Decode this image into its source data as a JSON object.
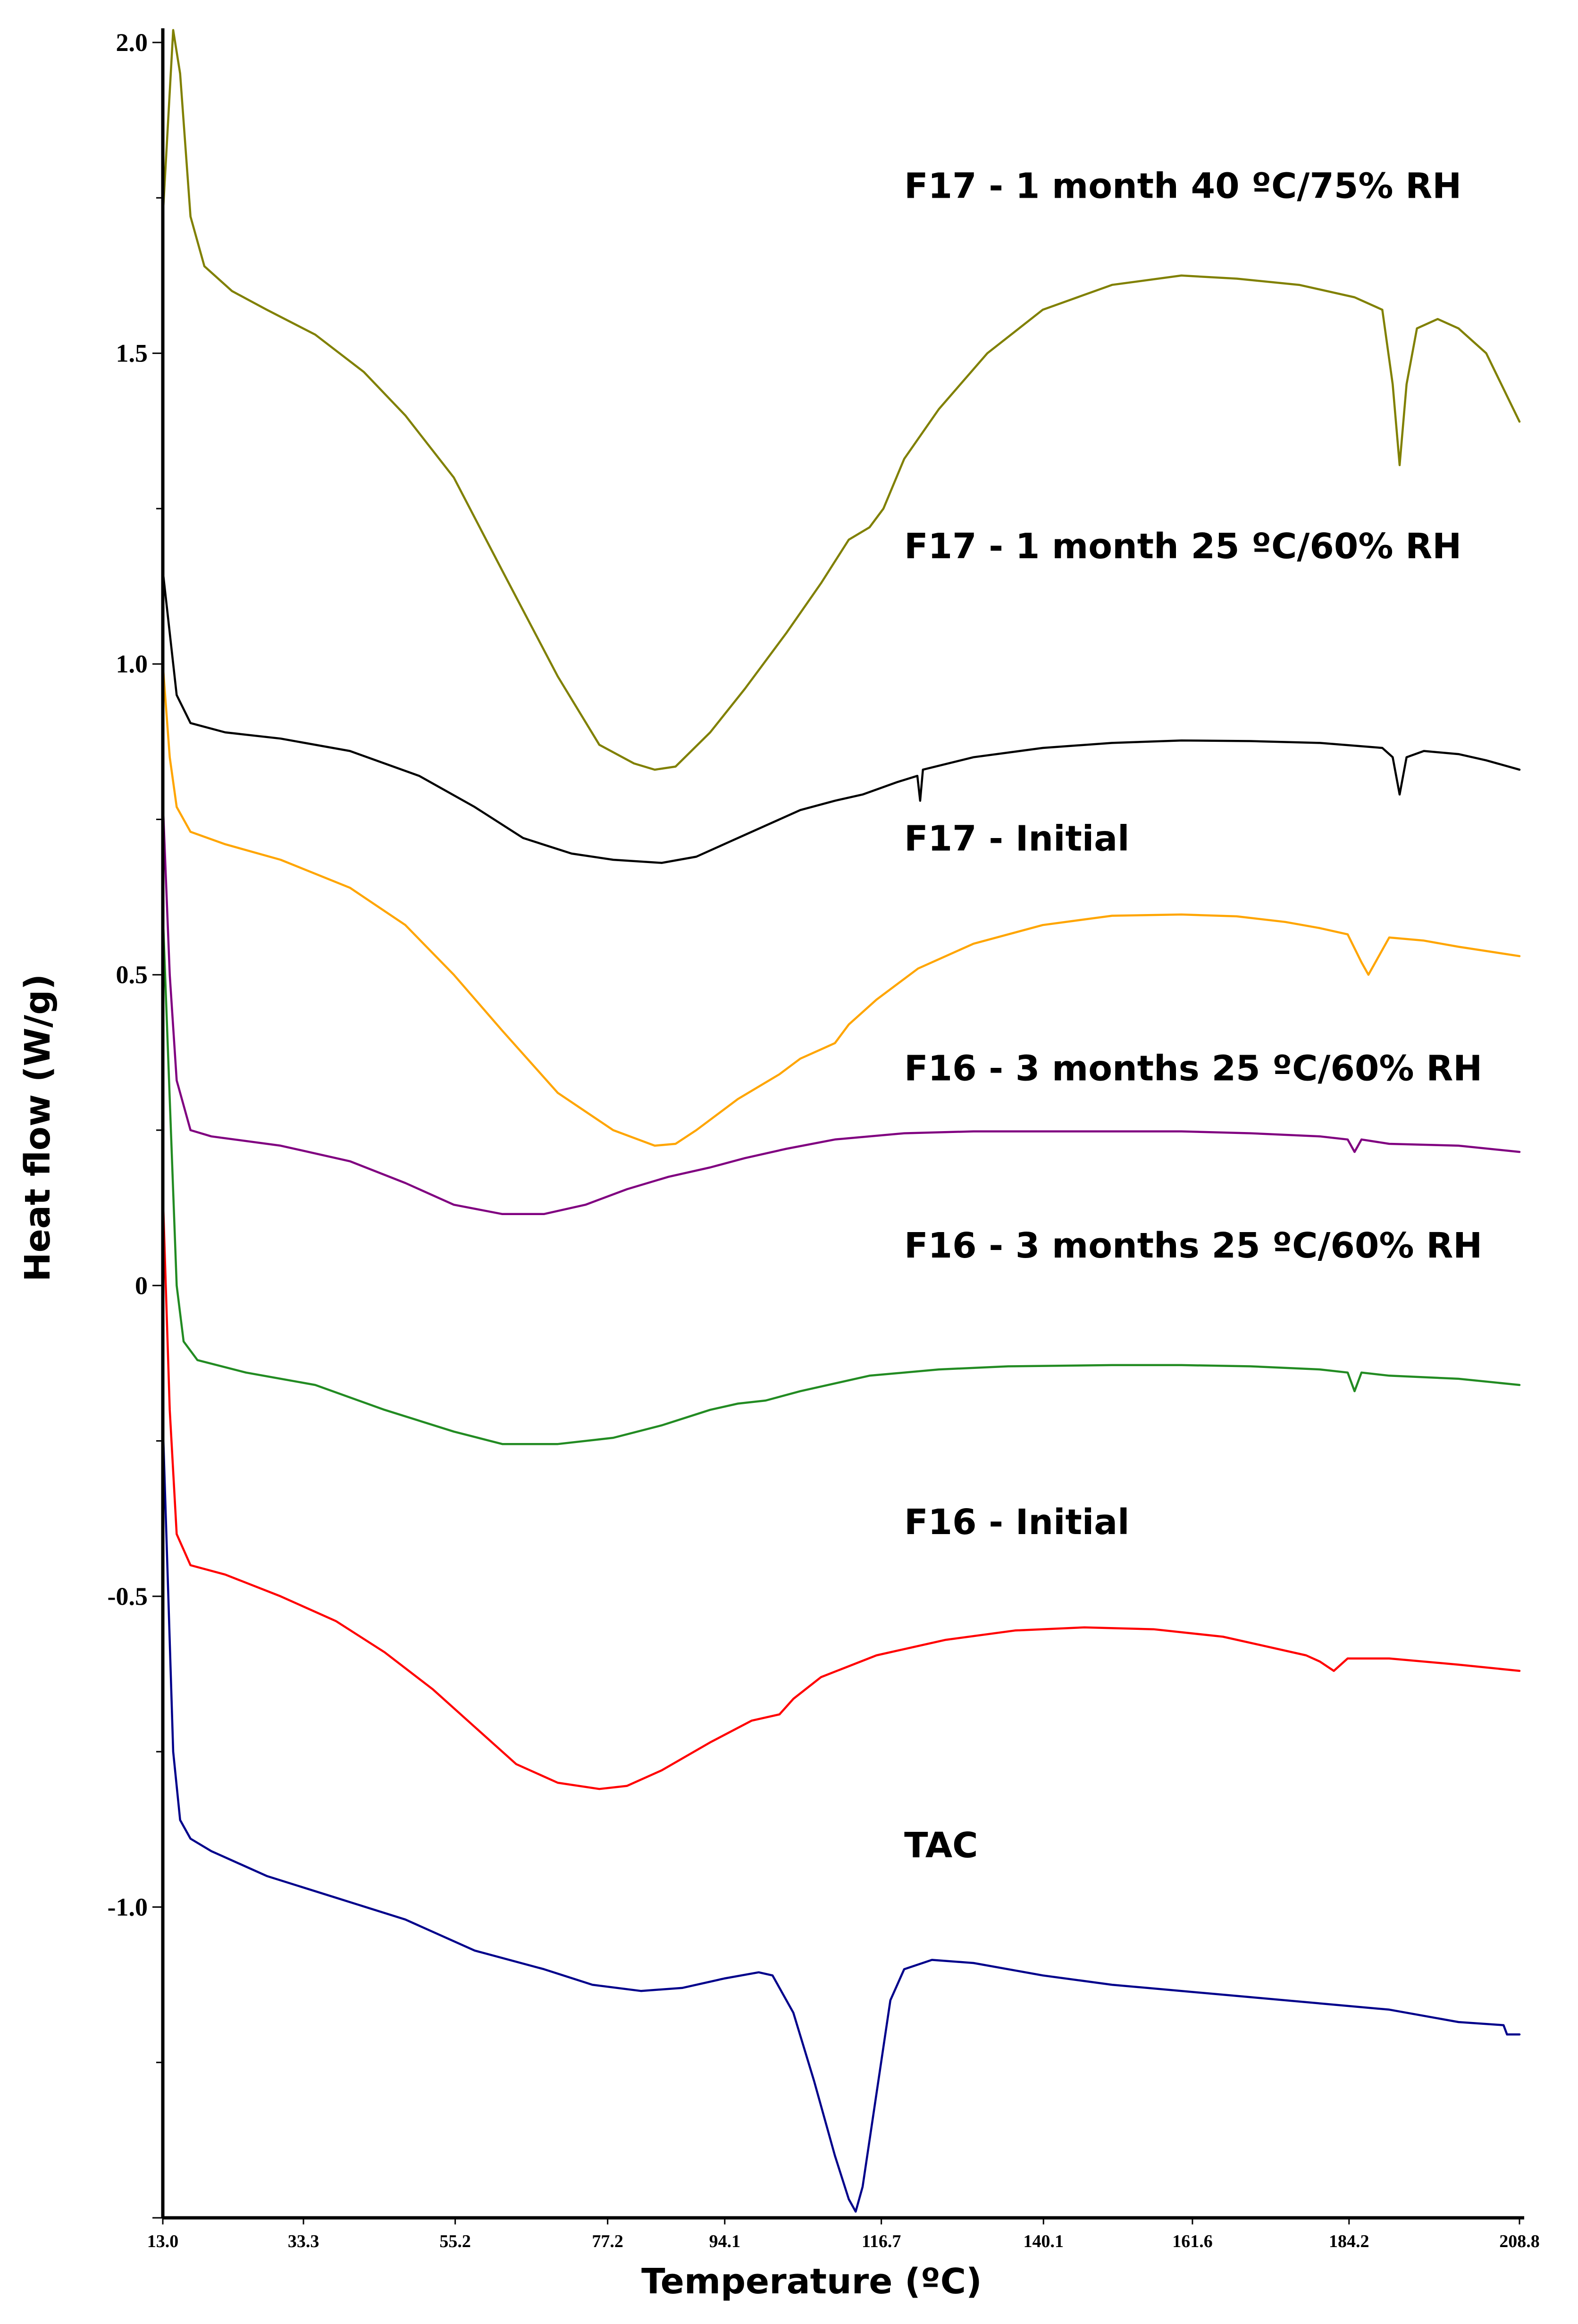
{
  "chart_data": {
    "type": "line",
    "xlabel": "Temperature (ºC)",
    "ylabel": "Heat flow (W/g)",
    "xlim": [
      13.0,
      208.8
    ],
    "ylim": [
      -1.5,
      2.0
    ],
    "x_ticks": [
      "13.0",
      "33.3",
      "55.2",
      "77.2",
      "94.1",
      "116.7",
      "140.1",
      "161.6",
      "184.2",
      "208.8"
    ],
    "x_tick_values": [
      13.0,
      33.3,
      55.2,
      77.2,
      94.1,
      116.7,
      140.1,
      161.6,
      184.2,
      208.8
    ],
    "y_ticks": [
      "2.0",
      "1.5",
      "1.0",
      "0.5",
      "0",
      "-0.5",
      "-1.0"
    ],
    "y_tick_values": [
      2.0,
      1.5,
      1.0,
      0.5,
      0,
      -0.5,
      -1.0
    ],
    "grid": false,
    "series": [
      {
        "name": "F17 - 1 month 40 ºC/75% RH",
        "color": "#808000",
        "label_anchor": [
          120.0,
          1.75
        ],
        "points": [
          [
            13.0,
            1.72
          ],
          [
            14.5,
            2.02
          ],
          [
            15.5,
            1.95
          ],
          [
            17,
            1.72
          ],
          [
            19,
            1.64
          ],
          [
            23,
            1.6
          ],
          [
            28,
            1.57
          ],
          [
            35,
            1.53
          ],
          [
            42,
            1.47
          ],
          [
            48,
            1.4
          ],
          [
            55,
            1.3
          ],
          [
            62,
            1.15
          ],
          [
            70,
            0.98
          ],
          [
            76,
            0.87
          ],
          [
            81,
            0.84
          ],
          [
            84,
            0.83
          ],
          [
            87,
            0.835
          ],
          [
            92,
            0.89
          ],
          [
            97,
            0.96
          ],
          [
            103,
            1.05
          ],
          [
            108,
            1.13
          ],
          [
            112,
            1.2
          ],
          [
            115,
            1.22
          ],
          [
            117,
            1.25
          ],
          [
            120,
            1.33
          ],
          [
            125,
            1.41
          ],
          [
            132,
            1.5
          ],
          [
            140,
            1.57
          ],
          [
            150,
            1.61
          ],
          [
            160,
            1.625
          ],
          [
            168,
            1.62
          ],
          [
            177,
            1.61
          ],
          [
            185,
            1.59
          ],
          [
            189,
            1.57
          ],
          [
            190.5,
            1.45
          ],
          [
            191.5,
            1.32
          ],
          [
            192.5,
            1.45
          ],
          [
            194,
            1.54
          ],
          [
            197,
            1.555
          ],
          [
            200,
            1.54
          ],
          [
            204,
            1.5
          ],
          [
            208.8,
            1.39
          ]
        ]
      },
      {
        "name": "F17 - 1 month 25 ºC/60% RH",
        "color": "#000000",
        "label_anchor": [
          120.0,
          1.17
        ],
        "points": [
          [
            13.0,
            1.15
          ],
          [
            14,
            1.05
          ],
          [
            15,
            0.95
          ],
          [
            17,
            0.905
          ],
          [
            22,
            0.89
          ],
          [
            30,
            0.88
          ],
          [
            40,
            0.86
          ],
          [
            50,
            0.82
          ],
          [
            58,
            0.77
          ],
          [
            65,
            0.72
          ],
          [
            72,
            0.695
          ],
          [
            78,
            0.685
          ],
          [
            85,
            0.68
          ],
          [
            90,
            0.69
          ],
          [
            95,
            0.715
          ],
          [
            100,
            0.74
          ],
          [
            105,
            0.765
          ],
          [
            110,
            0.78
          ],
          [
            114,
            0.79
          ],
          [
            119,
            0.81
          ],
          [
            121.9,
            0.82
          ],
          [
            122.3,
            0.78
          ],
          [
            122.7,
            0.83
          ],
          [
            130,
            0.85
          ],
          [
            140,
            0.865
          ],
          [
            150,
            0.873
          ],
          [
            160,
            0.877
          ],
          [
            170,
            0.876
          ],
          [
            180,
            0.873
          ],
          [
            189,
            0.865
          ],
          [
            190.5,
            0.85
          ],
          [
            191.5,
            0.79
          ],
          [
            192.5,
            0.85
          ],
          [
            195,
            0.86
          ],
          [
            200,
            0.855
          ],
          [
            204,
            0.845
          ],
          [
            208.8,
            0.83
          ]
        ]
      },
      {
        "name": "F17 - Initial",
        "color": "#ffa500",
        "label_anchor": [
          120.0,
          0.7
        ],
        "points": [
          [
            13.0,
            1.0
          ],
          [
            14,
            0.85
          ],
          [
            15,
            0.77
          ],
          [
            17,
            0.73
          ],
          [
            22,
            0.71
          ],
          [
            30,
            0.685
          ],
          [
            40,
            0.64
          ],
          [
            48,
            0.58
          ],
          [
            55,
            0.5
          ],
          [
            62,
            0.41
          ],
          [
            70,
            0.31
          ],
          [
            78,
            0.25
          ],
          [
            84,
            0.225
          ],
          [
            87,
            0.228
          ],
          [
            90,
            0.25
          ],
          [
            96,
            0.3
          ],
          [
            102,
            0.34
          ],
          [
            105,
            0.365
          ],
          [
            108,
            0.38
          ],
          [
            110,
            0.39
          ],
          [
            112,
            0.42
          ],
          [
            116,
            0.46
          ],
          [
            122,
            0.51
          ],
          [
            130,
            0.55
          ],
          [
            140,
            0.58
          ],
          [
            150,
            0.595
          ],
          [
            160,
            0.597
          ],
          [
            168,
            0.594
          ],
          [
            175,
            0.585
          ],
          [
            180,
            0.575
          ],
          [
            184,
            0.565
          ],
          [
            186,
            0.52
          ],
          [
            187,
            0.5
          ],
          [
            188,
            0.52
          ],
          [
            190,
            0.56
          ],
          [
            195,
            0.555
          ],
          [
            200,
            0.545
          ],
          [
            208.8,
            0.53
          ]
        ]
      },
      {
        "name": "F16 - 3 months 25 ºC/60% RH",
        "color": "#800080",
        "label_anchor": [
          120.0,
          0.33
        ],
        "points": [
          [
            13.0,
            0.78
          ],
          [
            14,
            0.5
          ],
          [
            15,
            0.33
          ],
          [
            17,
            0.25
          ],
          [
            20,
            0.24
          ],
          [
            30,
            0.225
          ],
          [
            40,
            0.2
          ],
          [
            48,
            0.165
          ],
          [
            55,
            0.13
          ],
          [
            62,
            0.115
          ],
          [
            68,
            0.115
          ],
          [
            74,
            0.13
          ],
          [
            80,
            0.155
          ],
          [
            86,
            0.175
          ],
          [
            92,
            0.19
          ],
          [
            97,
            0.205
          ],
          [
            103,
            0.22
          ],
          [
            110,
            0.235
          ],
          [
            120,
            0.245
          ],
          [
            130,
            0.248
          ],
          [
            140,
            0.248
          ],
          [
            150,
            0.248
          ],
          [
            160,
            0.248
          ],
          [
            170,
            0.245
          ],
          [
            180,
            0.24
          ],
          [
            184,
            0.235
          ],
          [
            185,
            0.215
          ],
          [
            186,
            0.235
          ],
          [
            190,
            0.228
          ],
          [
            200,
            0.225
          ],
          [
            208.8,
            0.215
          ]
        ]
      },
      {
        "name": "F16 - 3 months 25 ºC/60% RH",
        "color": "#228b22",
        "label_anchor": [
          120.0,
          0.045
        ],
        "points": [
          [
            13.0,
            0.6
          ],
          [
            14,
            0.3
          ],
          [
            15,
            0.0
          ],
          [
            16,
            -0.09
          ],
          [
            18,
            -0.12
          ],
          [
            25,
            -0.14
          ],
          [
            35,
            -0.16
          ],
          [
            45,
            -0.2
          ],
          [
            55,
            -0.235
          ],
          [
            62,
            -0.255
          ],
          [
            70,
            -0.255
          ],
          [
            78,
            -0.245
          ],
          [
            85,
            -0.225
          ],
          [
            92,
            -0.2
          ],
          [
            96,
            -0.19
          ],
          [
            100,
            -0.185
          ],
          [
            105,
            -0.17
          ],
          [
            115,
            -0.145
          ],
          [
            125,
            -0.135
          ],
          [
            135,
            -0.13
          ],
          [
            150,
            -0.128
          ],
          [
            160,
            -0.128
          ],
          [
            170,
            -0.13
          ],
          [
            180,
            -0.135
          ],
          [
            184,
            -0.14
          ],
          [
            185,
            -0.17
          ],
          [
            186,
            -0.14
          ],
          [
            190,
            -0.145
          ],
          [
            200,
            -0.15
          ],
          [
            208.8,
            -0.16
          ]
        ]
      },
      {
        "name": "F16 - Initial",
        "color": "#ff0000",
        "label_anchor": [
          120.0,
          -0.4
        ],
        "points": [
          [
            13.0,
            0.15
          ],
          [
            14,
            -0.2
          ],
          [
            15,
            -0.4
          ],
          [
            17,
            -0.45
          ],
          [
            22,
            -0.465
          ],
          [
            30,
            -0.5
          ],
          [
            38,
            -0.54
          ],
          [
            45,
            -0.59
          ],
          [
            52,
            -0.65
          ],
          [
            58,
            -0.71
          ],
          [
            64,
            -0.77
          ],
          [
            70,
            -0.8
          ],
          [
            76,
            -0.81
          ],
          [
            80,
            -0.805
          ],
          [
            85,
            -0.78
          ],
          [
            92,
            -0.735
          ],
          [
            98,
            -0.7
          ],
          [
            100,
            -0.695
          ],
          [
            102,
            -0.69
          ],
          [
            104,
            -0.665
          ],
          [
            108,
            -0.63
          ],
          [
            116,
            -0.595
          ],
          [
            126,
            -0.57
          ],
          [
            136,
            -0.555
          ],
          [
            146,
            -0.55
          ],
          [
            156,
            -0.553
          ],
          [
            166,
            -0.565
          ],
          [
            172,
            -0.58
          ],
          [
            178,
            -0.595
          ],
          [
            180,
            -0.605
          ],
          [
            182,
            -0.62
          ],
          [
            184,
            -0.6
          ],
          [
            190,
            -0.6
          ],
          [
            200,
            -0.61
          ],
          [
            208.8,
            -0.62
          ]
        ]
      },
      {
        "name": "TAC",
        "color": "#00008b",
        "label_anchor": [
          120.0,
          -0.92
        ],
        "points": [
          [
            13.0,
            -0.22
          ],
          [
            13.8,
            -0.5
          ],
          [
            14.5,
            -0.75
          ],
          [
            15.5,
            -0.86
          ],
          [
            17,
            -0.89
          ],
          [
            20,
            -0.91
          ],
          [
            28,
            -0.95
          ],
          [
            38,
            -0.985
          ],
          [
            48,
            -1.02
          ],
          [
            58,
            -1.07
          ],
          [
            68,
            -1.1
          ],
          [
            75,
            -1.125
          ],
          [
            82,
            -1.135
          ],
          [
            88,
            -1.13
          ],
          [
            94,
            -1.115
          ],
          [
            99,
            -1.105
          ],
          [
            101,
            -1.11
          ],
          [
            104,
            -1.17
          ],
          [
            107,
            -1.28
          ],
          [
            110,
            -1.4
          ],
          [
            112,
            -1.47
          ],
          [
            113,
            -1.49
          ],
          [
            114,
            -1.45
          ],
          [
            116,
            -1.3
          ],
          [
            118,
            -1.15
          ],
          [
            120,
            -1.1
          ],
          [
            124,
            -1.085
          ],
          [
            130,
            -1.09
          ],
          [
            140,
            -1.11
          ],
          [
            150,
            -1.125
          ],
          [
            160,
            -1.135
          ],
          [
            170,
            -1.145
          ],
          [
            180,
            -1.155
          ],
          [
            190,
            -1.165
          ],
          [
            200,
            -1.185
          ],
          [
            206.5,
            -1.19
          ],
          [
            207,
            -1.205
          ],
          [
            208.8,
            -1.205
          ]
        ]
      }
    ]
  }
}
